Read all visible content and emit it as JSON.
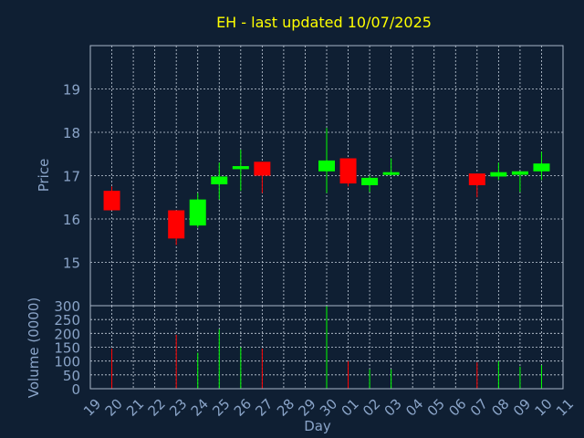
{
  "chart_data": {
    "type": "candlestick",
    "title": "EH - last updated 10/07/2025",
    "xlabel": "Day",
    "ylabel_price": "Price",
    "ylabel_volume": "Volume (0000)",
    "price_ylim": [
      14,
      20
    ],
    "price_ticks": [
      15,
      16,
      17,
      18,
      19
    ],
    "volume_ylim": [
      0,
      300
    ],
    "volume_ticks": [
      0,
      50,
      100,
      150,
      200,
      250,
      300
    ],
    "x_ticks": [
      "19",
      "20",
      "21",
      "22",
      "23",
      "24",
      "25",
      "26",
      "27",
      "28",
      "29",
      "30",
      "01",
      "02",
      "03",
      "04",
      "05",
      "06",
      "07",
      "08",
      "09",
      "10",
      "11"
    ],
    "grid": true,
    "up_color": "#00ff00",
    "down_color": "#ff0000",
    "candles": [
      {
        "day": "20",
        "open": 16.65,
        "high": 16.75,
        "low": 16.2,
        "close": 16.2,
        "volume": 145
      },
      {
        "day": "23",
        "open": 16.2,
        "high": 16.2,
        "low": 15.4,
        "close": 15.55,
        "volume": 195
      },
      {
        "day": "24",
        "open": 15.85,
        "high": 16.6,
        "low": 15.8,
        "close": 16.45,
        "volume": 130
      },
      {
        "day": "25",
        "open": 16.8,
        "high": 17.3,
        "low": 16.45,
        "close": 16.98,
        "volume": 215
      },
      {
        "day": "26",
        "open": 17.15,
        "high": 17.6,
        "low": 16.65,
        "close": 17.22,
        "volume": 150
      },
      {
        "day": "27",
        "open": 17.32,
        "high": 17.32,
        "low": 16.6,
        "close": 17.0,
        "volume": 145
      },
      {
        "day": "30",
        "open": 17.1,
        "high": 18.1,
        "low": 16.6,
        "close": 17.35,
        "volume": 300
      },
      {
        "day": "01",
        "open": 17.4,
        "high": 17.4,
        "low": 16.75,
        "close": 16.82,
        "volume": 100
      },
      {
        "day": "02",
        "open": 16.78,
        "high": 17.0,
        "low": 16.62,
        "close": 16.95,
        "volume": 70
      },
      {
        "day": "03",
        "open": 17.02,
        "high": 17.4,
        "low": 17.0,
        "close": 17.08,
        "volume": 70
      },
      {
        "day": "07",
        "open": 17.05,
        "high": 17.05,
        "low": 16.5,
        "close": 16.78,
        "volume": 95
      },
      {
        "day": "08",
        "open": 16.98,
        "high": 17.3,
        "low": 16.9,
        "close": 17.08,
        "volume": 100
      },
      {
        "day": "09",
        "open": 17.02,
        "high": 17.1,
        "low": 16.62,
        "close": 17.1,
        "volume": 80
      },
      {
        "day": "10",
        "open": 17.1,
        "high": 17.55,
        "low": 16.9,
        "close": 17.28,
        "volume": 85
      }
    ]
  }
}
